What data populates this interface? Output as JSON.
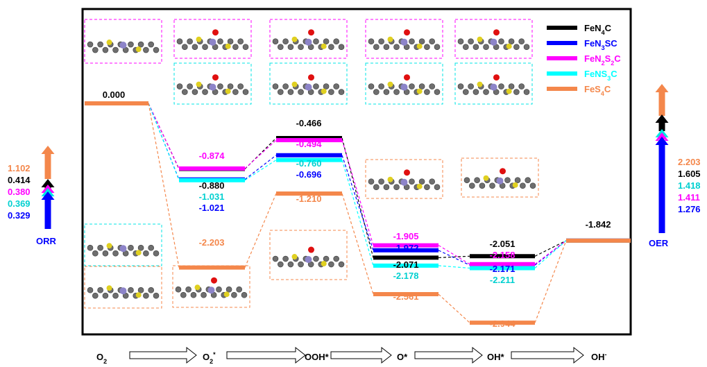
{
  "chart_data": {
    "type": "energy-level diagram",
    "steps": [
      "O",
      "O*",
      "OOH*",
      "O*",
      "OH*",
      "OH"
    ],
    "series": [
      {
        "name": "FeN4C",
        "color": "#000000",
        "values": [
          0.0,
          -0.88,
          -0.466,
          -2.071,
          -2.051,
          -1.842
        ]
      },
      {
        "name": "FeN3SC",
        "color": "#0000ff",
        "values": [
          0.0,
          -1.021,
          -0.696,
          -1.972,
          -2.171,
          -1.842
        ]
      },
      {
        "name": "FeN2S2C",
        "color": "#ff00ff",
        "values": [
          0.0,
          -0.874,
          -0.494,
          -1.905,
          -2.158,
          -1.842
        ]
      },
      {
        "name": "FeNS3C",
        "color": "#00ffff",
        "values": [
          0.0,
          -1.031,
          -0.76,
          -2.178,
          -2.211,
          -1.842
        ]
      },
      {
        "name": "FeS4C",
        "color": "#f4874b",
        "values": [
          0.0,
          -2.203,
          -1.21,
          -2.561,
          -2.944,
          -1.842
        ]
      }
    ],
    "level_labels": {
      "step0": [
        "0.000"
      ],
      "step1": [
        "-0.874",
        "-0.880",
        "-1.031",
        "-1.021",
        "-2.203"
      ],
      "step2": [
        "-0.466",
        "-0.494",
        "-0.760",
        "-0.696",
        "-1.210"
      ],
      "step3": [
        "-1.905",
        "-1.972",
        "-2.071",
        "-2.178",
        "-2.561"
      ],
      "step4": [
        "-2.051",
        "-2.158",
        "-2.171",
        "-2.211",
        "-2.944"
      ],
      "step5": [
        "-1.842"
      ]
    },
    "orr": {
      "label": "ORR",
      "values": [
        "1.102",
        "0.414",
        "0.380",
        "0.369",
        "0.329"
      ]
    },
    "oer": {
      "label": "OER",
      "values": [
        "2.203",
        "1.605",
        "1.418",
        "1.411",
        "1.276"
      ]
    },
    "step_labels": [
      "O",
      "O",
      "OOH*",
      "O*",
      "OH*",
      "OH"
    ],
    "step_subs": [
      "2",
      "2",
      "",
      "",
      "",
      ""
    ],
    "step_sups": [
      "",
      "*",
      "",
      "",
      "",
      "-"
    ],
    "legend": [
      {
        "base": "FeN",
        "sub1": "4",
        "mid": "C",
        "sub2": "",
        "tail": ""
      },
      {
        "base": "FeN",
        "sub1": "3",
        "mid": "SC",
        "sub2": "",
        "tail": ""
      },
      {
        "base": "FeN",
        "sub1": "2",
        "mid": "S",
        "sub2": "2",
        "tail": "C"
      },
      {
        "base": "FeNS",
        "sub1": "3",
        "mid": "C",
        "sub2": "",
        "tail": ""
      },
      {
        "base": "FeS",
        "sub1": "4",
        "mid": "C",
        "sub2": "",
        "tail": ""
      }
    ]
  }
}
